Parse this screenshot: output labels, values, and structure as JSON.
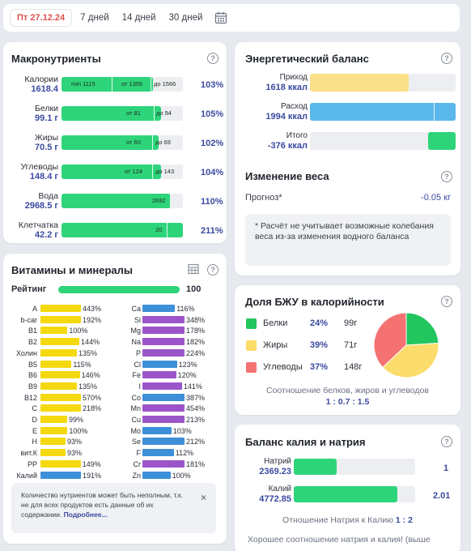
{
  "toolbar": {
    "date": "Пт 27.12.24",
    "periods": [
      "7 дней",
      "14 дней",
      "30 дней"
    ]
  },
  "macro": {
    "title": "Макронутриенты",
    "rows": [
      {
        "name": "Калории",
        "value": "1618.4",
        "min": "min 1115",
        "from": "от 1356",
        "to": "до 1566",
        "pct": "103%",
        "fill": 0.75
      },
      {
        "name": "Белки",
        "value": "99.1 г",
        "from": "от 81",
        "to": "до 94",
        "pct": "105%",
        "fill": 0.82
      },
      {
        "name": "Жиры",
        "value": "70.5 г",
        "from": "от 60",
        "to": "до 69",
        "pct": "102%",
        "fill": 0.8
      },
      {
        "name": "Углеводы",
        "value": "148.4 г",
        "from": "от 124",
        "to": "до 143",
        "pct": "104%",
        "fill": 0.82
      },
      {
        "name": "Вода",
        "value": "2968.5 г",
        "mark": "2692",
        "pct": "110%",
        "fill": 0.9
      },
      {
        "name": "Клетчатка",
        "value": "42.2 г",
        "mark": "20",
        "pct": "211%",
        "fill": 1.0
      }
    ]
  },
  "vitamins": {
    "title": "Витамины и минералы",
    "rating_label": "Рейтинг",
    "rating_value": "100",
    "left": [
      [
        "A",
        "443%"
      ],
      [
        "b-car",
        "192%"
      ],
      [
        "B1",
        "100%"
      ],
      [
        "B2",
        "144%"
      ],
      [
        "Холин",
        "135%"
      ],
      [
        "B5",
        "115%"
      ],
      [
        "B6",
        "146%"
      ],
      [
        "B9",
        "135%"
      ],
      [
        "B12",
        "570%"
      ],
      [
        "C",
        "218%"
      ],
      [
        "D",
        "99%"
      ],
      [
        "E",
        "100%"
      ],
      [
        "H",
        "93%"
      ],
      [
        "вит.К",
        "93%"
      ],
      [
        "PP",
        "149%"
      ],
      [
        "Калий",
        "191%"
      ]
    ],
    "right": [
      [
        "Ca",
        "116%"
      ],
      [
        "Si",
        "348%"
      ],
      [
        "Mg",
        "178%"
      ],
      [
        "Na",
        "182%"
      ],
      [
        "P",
        "224%"
      ],
      [
        "Cl",
        "123%"
      ],
      [
        "Fe",
        "120%"
      ],
      [
        "I",
        "141%"
      ],
      [
        "Co",
        "387%"
      ],
      [
        "Mn",
        "454%"
      ],
      [
        "Cu",
        "213%"
      ],
      [
        "Mo",
        "103%"
      ],
      [
        "Se",
        "212%"
      ],
      [
        "F",
        "112%"
      ],
      [
        "Cr",
        "181%"
      ],
      [
        "Zn",
        "100%"
      ]
    ],
    "notice": "Количество нутриентов может быть неполным, т.к. не для всех продуктов есть данные об их содержании.",
    "notice_more": "Подробнее...",
    "colors": {
      "yellow": "#f5d90f",
      "blue": "#3d8fd8",
      "purple": "#9b55c9",
      "green": "#2ed47a"
    }
  },
  "energy": {
    "title": "Энергетический баланс",
    "rows": [
      {
        "name": "Приход",
        "value": "1618 ккал",
        "fill": 0.68,
        "color": "#fbe08a"
      },
      {
        "name": "Расход",
        "value": "1994 ккал",
        "fill": 1.0,
        "color": "#5bb8ea"
      },
      {
        "name": "Итого",
        "value": "-376 ккал",
        "fill": 0.19,
        "color": "#2ed47a"
      }
    ],
    "weight_title": "Изменение веса",
    "forecast_label": "Прогноз*",
    "forecast_value": "-0.05 кг",
    "note": "* Расчёт не учитывает возможные колебания веса из-за изменения водного баланса"
  },
  "bju": {
    "title": "Доля БЖУ в калорийности",
    "rows": [
      {
        "name": "Белки",
        "pct": "24%",
        "grams": "99г",
        "color": "#22c55e",
        "share": 24
      },
      {
        "name": "Жиры",
        "pct": "39%",
        "grams": "71г",
        "color": "#fcdc6a",
        "share": 39
      },
      {
        "name": "Углеводы",
        "pct": "37%",
        "grams": "148г",
        "color": "#f47272",
        "share": 37
      }
    ],
    "ratio_text": "Соотношение белков, жиров и углеводов",
    "ratio_value": "1 : 0.7 : 1.5"
  },
  "kna": {
    "title": "Баланс калия и натрия",
    "rows": [
      {
        "name": "Натрий",
        "value": "2369.23",
        "ratio": "1",
        "fill": 0.35
      },
      {
        "name": "Калий",
        "value": "4772.85",
        "ratio": "2.01",
        "fill": 0.85
      }
    ],
    "ratio_label": "Отношение Натрия к Калию",
    "ratio_value": "1 : 2",
    "footer": "Хорошее соотношение натрия и калия! (выше"
  }
}
